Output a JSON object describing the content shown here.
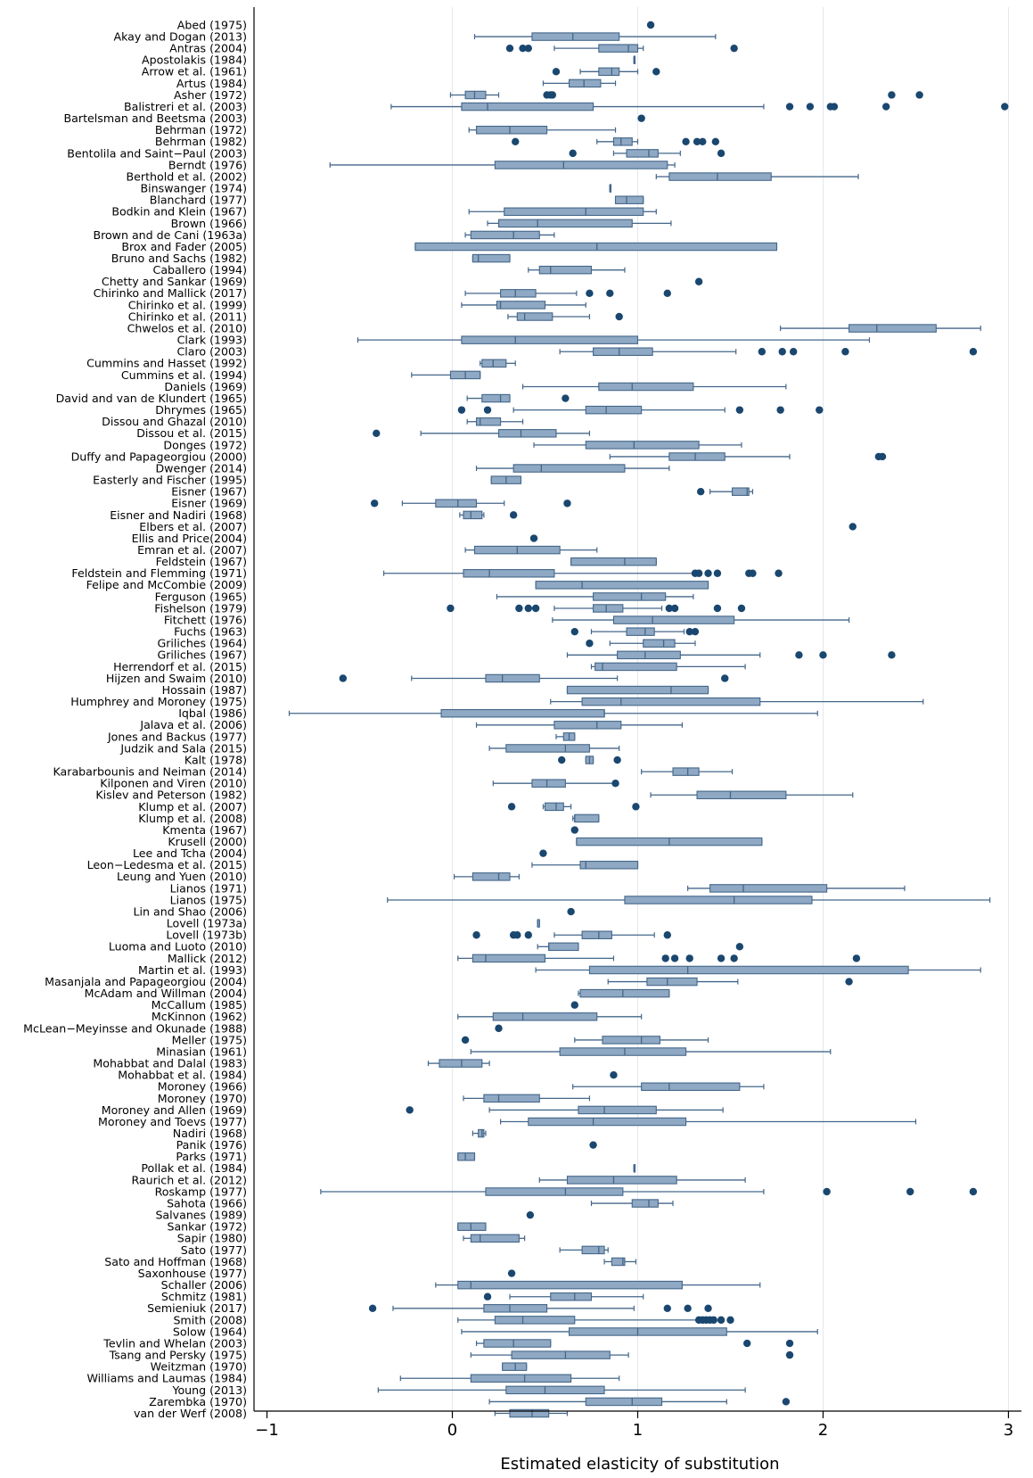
{
  "chart_data": {
    "type": "boxplot",
    "orientation": "horizontal",
    "title": "",
    "xlabel": "Estimated elasticity of substitution",
    "ylabel": "",
    "xlim": [
      -1.07,
      3.07
    ],
    "xticks": [
      -1,
      0,
      1,
      2,
      3
    ],
    "xtick_labels": [
      "−1",
      "0",
      "1",
      "2",
      "3"
    ],
    "vertical_grid": true,
    "legend": "none",
    "colors": {
      "box_fill": "#8fa8c3",
      "box_edge": "#44678a",
      "outlier": "#1a476f",
      "grid": "#e3e8ee",
      "axis": "#000000"
    },
    "categories": [
      "Abed (1975)",
      "Akay and Dogan (2013)",
      "Antras (2004)",
      "Apostolakis (1984)",
      "Arrow et al. (1961)",
      "Artus (1984)",
      "Asher (1972)",
      "Balistreri et al. (2003)",
      "Bartelsman and Beetsma (2003)",
      "Behrman (1972)",
      "Behrman (1982)",
      "Bentolila and Saint−Paul (2003)",
      "Berndt (1976)",
      "Berthold et al. (2002)",
      "Binswanger (1974)",
      "Blanchard (1977)",
      "Bodkin and Klein (1967)",
      "Brown (1966)",
      "Brown and de Cani (1963a)",
      "Brox and Fader (2005)",
      "Bruno and Sachs (1982)",
      "Caballero (1994)",
      "Chetty and Sankar (1969)",
      "Chirinko and Mallick (2017)",
      "Chirinko et al. (1999)",
      "Chirinko et al. (2011)",
      "Chwelos et al. (2010)",
      "Clark (1993)",
      "Claro (2003)",
      "Cummins and Hasset (1992)",
      "Cummins et al. (1994)",
      "Daniels (1969)",
      "David and van de Klundert (1965)",
      "Dhrymes (1965)",
      "Dissou and Ghazal (2010)",
      "Dissou et al. (2015)",
      "Donges (1972)",
      "Duffy and Papageorgiou (2000)",
      "Dwenger (2014)",
      "Easterly and Fischer (1995)",
      "Eisner (1967)",
      "Eisner (1969)",
      "Eisner and Nadiri (1968)",
      "Elbers et al. (2007)",
      "Ellis and Price(2004)",
      "Emran et al. (2007)",
      "Feldstein (1967)",
      "Feldstein and Flemming (1971)",
      "Felipe and McCombie (2009)",
      "Ferguson (1965)",
      "Fishelson (1979)",
      "Fitchett (1976)",
      "Fuchs (1963)",
      "Griliches (1964)",
      "Griliches (1967)",
      "Herrendorf et al. (2015)",
      "Hijzen and Swaim (2010)",
      "Hossain (1987)",
      "Humphrey and Moroney (1975)",
      "Iqbal (1986)",
      "Jalava et al. (2006)",
      "Jones and Backus (1977)",
      "Judzik and Sala (2015)",
      "Kalt (1978)",
      "Karabarbounis and Neiman (2014)",
      "Kilponen and Viren (2010)",
      "Kislev and Peterson (1982)",
      "Klump et al. (2007)",
      "Klump et al. (2008)",
      "Kmenta (1967)",
      "Krusell (2000)",
      "Lee and Tcha (2004)",
      "Leon−Ledesma et al. (2015)",
      "Leung and Yuen (2010)",
      "Lianos (1971)",
      "Lianos (1975)",
      "Lin and Shao (2006)",
      "Lovell (1973a)",
      "Lovell (1973b)",
      "Luoma and Luoto (2010)",
      "Mallick (2012)",
      "Martin et al. (1993)",
      "Masanjala and Papageorgiou (2004)",
      "McAdam and Willman (2004)",
      "McCallum (1985)",
      "McKinnon (1962)",
      "McLean−Meyinsse and Okunade (1988)",
      "Meller (1975)",
      "Minasian (1961)",
      "Mohabbat and Dalal (1983)",
      "Mohabbat et al. (1984)",
      "Moroney (1966)",
      "Moroney (1970)",
      "Moroney and Allen (1969)",
      "Moroney and Toevs (1977)",
      "Nadiri (1968)",
      "Panik (1976)",
      "Parks (1971)",
      "Pollak et al. (1984)",
      "Raurich et al. (2012)",
      "Roskamp (1977)",
      "Sahota (1966)",
      "Salvanes (1989)",
      "Sankar (1972)",
      "Sapir (1980)",
      "Sato (1977)",
      "Sato and Hoffman (1968)",
      "Saxonhouse (1977)",
      "Schaller (2006)",
      "Schmitz (1981)",
      "Semieniuk (2017)",
      "Smith (2008)",
      "Solow (1964)",
      "Tevlin and Whelan (2003)",
      "Tsang and Persky (1975)",
      "Weitzman (1970)",
      "Williams and Laumas (1984)",
      "Young (2013)",
      "Zarembka (1970)",
      "van der Werf (2008)"
    ],
    "boxes": [
      [
        null,
        null,
        null,
        null,
        null,
        [
          1.07
        ]
      ],
      [
        0.12,
        0.43,
        0.65,
        0.9,
        1.42,
        []
      ],
      [
        0.55,
        0.79,
        0.95,
        1.0,
        1.03,
        [
          0.31,
          0.38,
          0.41,
          1.52
        ]
      ],
      [
        0.98,
        0.98,
        0.98,
        0.98,
        0.98,
        []
      ],
      [
        0.69,
        0.79,
        0.86,
        0.9,
        1.0,
        [
          0.56,
          1.1
        ]
      ],
      [
        0.49,
        0.63,
        0.71,
        0.8,
        0.88,
        []
      ],
      [
        -0.01,
        0.07,
        0.12,
        0.18,
        0.25,
        [
          0.51,
          0.53,
          0.54,
          2.37,
          2.52
        ]
      ],
      [
        -0.33,
        0.05,
        0.19,
        0.76,
        1.68,
        [
          1.82,
          1.93,
          2.04,
          2.06,
          2.34,
          2.98
        ]
      ],
      [
        null,
        null,
        null,
        null,
        null,
        [
          1.02
        ]
      ],
      [
        0.09,
        0.13,
        0.31,
        0.51,
        0.88,
        []
      ],
      [
        0.78,
        0.87,
        0.91,
        0.97,
        1.0,
        [
          0.34,
          1.26,
          1.32,
          1.35,
          1.42
        ]
      ],
      [
        0.87,
        0.94,
        1.06,
        1.11,
        1.23,
        [
          0.65,
          1.45
        ]
      ],
      [
        -0.66,
        0.23,
        0.6,
        1.16,
        1.2,
        []
      ],
      [
        1.1,
        1.17,
        1.43,
        1.72,
        2.19,
        []
      ],
      [
        0.85,
        0.85,
        0.85,
        0.85,
        0.85,
        []
      ],
      [
        0.88,
        0.88,
        0.94,
        1.03,
        1.03,
        []
      ],
      [
        0.09,
        0.28,
        0.72,
        1.03,
        1.1,
        []
      ],
      [
        0.19,
        0.25,
        0.46,
        0.97,
        1.18,
        []
      ],
      [
        0.07,
        0.1,
        0.33,
        0.47,
        0.55,
        []
      ],
      [
        -0.2,
        -0.2,
        0.78,
        1.75,
        1.75,
        []
      ],
      [
        0.11,
        0.11,
        0.14,
        0.31,
        0.31,
        []
      ],
      [
        0.41,
        0.47,
        0.53,
        0.75,
        0.93,
        []
      ],
      [
        null,
        null,
        null,
        null,
        null,
        [
          1.33
        ]
      ],
      [
        0.07,
        0.26,
        0.34,
        0.45,
        0.67,
        [
          0.74,
          0.85,
          1.16
        ]
      ],
      [
        0.05,
        0.24,
        0.26,
        0.5,
        0.72,
        []
      ],
      [
        0.3,
        0.35,
        0.39,
        0.54,
        0.74,
        [
          0.9
        ]
      ],
      [
        1.77,
        2.14,
        2.29,
        2.61,
        2.85,
        []
      ],
      [
        -0.51,
        0.05,
        0.34,
        1.0,
        2.25,
        []
      ],
      [
        0.58,
        0.76,
        0.9,
        1.08,
        1.53,
        [
          1.67,
          1.78,
          1.84,
          2.12,
          2.81
        ]
      ],
      [
        0.15,
        0.16,
        0.22,
        0.29,
        0.34,
        []
      ],
      [
        -0.22,
        -0.01,
        0.07,
        0.15,
        0.15,
        []
      ],
      [
        0.38,
        0.79,
        0.97,
        1.3,
        1.8,
        []
      ],
      [
        0.08,
        0.16,
        0.26,
        0.31,
        0.31,
        [
          0.61
        ]
      ],
      [
        0.33,
        0.72,
        0.83,
        1.02,
        1.47,
        [
          0.05,
          0.19,
          1.55,
          1.77,
          1.98
        ]
      ],
      [
        0.08,
        0.13,
        0.15,
        0.26,
        0.38,
        []
      ],
      [
        -0.17,
        0.25,
        0.37,
        0.56,
        0.74,
        [
          -0.41
        ]
      ],
      [
        0.44,
        0.72,
        0.98,
        1.33,
        1.56,
        []
      ],
      [
        0.85,
        1.17,
        1.31,
        1.47,
        1.82,
        [
          2.3,
          2.32
        ]
      ],
      [
        0.13,
        0.33,
        0.48,
        0.93,
        1.17,
        []
      ],
      [
        0.21,
        0.21,
        0.29,
        0.37,
        0.37,
        []
      ],
      [
        1.39,
        1.51,
        1.59,
        1.6,
        1.62,
        [
          1.34
        ]
      ],
      [
        -0.27,
        -0.09,
        0.03,
        0.13,
        0.28,
        [
          -0.42,
          0.62
        ]
      ],
      [
        0.04,
        0.06,
        0.1,
        0.16,
        0.17,
        [
          0.33
        ]
      ],
      [
        null,
        null,
        null,
        null,
        null,
        [
          2.16
        ]
      ],
      [
        null,
        null,
        null,
        null,
        null,
        [
          0.44
        ]
      ],
      [
        0.07,
        0.12,
        0.35,
        0.58,
        0.78,
        []
      ],
      [
        0.64,
        0.64,
        0.93,
        1.1,
        1.1,
        []
      ],
      [
        -0.37,
        0.06,
        0.2,
        0.55,
        1.3,
        [
          1.31,
          1.33,
          1.38,
          1.43,
          1.6,
          1.62,
          1.76
        ]
      ],
      [
        0.45,
        0.45,
        0.7,
        1.38,
        1.38,
        []
      ],
      [
        0.24,
        0.76,
        1.02,
        1.15,
        1.3,
        []
      ],
      [
        0.55,
        0.76,
        0.83,
        0.92,
        1.13,
        [
          -0.01,
          0.36,
          0.41,
          0.45,
          1.17,
          1.2,
          1.43,
          1.56
        ]
      ],
      [
        0.54,
        0.87,
        1.08,
        1.52,
        2.14,
        []
      ],
      [
        0.75,
        0.94,
        1.04,
        1.09,
        1.25,
        [
          0.66,
          1.28,
          1.31
        ]
      ],
      [
        0.85,
        1.03,
        1.14,
        1.2,
        1.31,
        [
          0.74
        ]
      ],
      [
        0.62,
        0.89,
        1.04,
        1.23,
        1.66,
        [
          1.87,
          2.0,
          2.37
        ]
      ],
      [
        0.75,
        0.77,
        0.81,
        1.21,
        1.58,
        []
      ],
      [
        -0.22,
        0.18,
        0.27,
        0.47,
        0.89,
        [
          -0.59,
          1.47
        ]
      ],
      [
        0.62,
        0.62,
        1.18,
        1.38,
        1.38,
        []
      ],
      [
        0.53,
        0.7,
        0.91,
        1.66,
        2.54,
        []
      ],
      [
        -0.88,
        -0.06,
        0.82,
        0.82,
        1.97,
        []
      ],
      [
        0.13,
        0.55,
        0.78,
        0.91,
        1.24,
        []
      ],
      [
        0.56,
        0.6,
        0.63,
        0.66,
        0.66,
        []
      ],
      [
        0.2,
        0.29,
        0.61,
        0.74,
        0.9,
        []
      ],
      [
        0.72,
        0.72,
        0.74,
        0.76,
        0.76,
        [
          0.59,
          0.89
        ]
      ],
      [
        1.02,
        1.19,
        1.27,
        1.33,
        1.51,
        []
      ],
      [
        0.22,
        0.43,
        0.51,
        0.61,
        0.88,
        [
          0.88
        ]
      ],
      [
        1.07,
        1.32,
        1.5,
        1.8,
        2.16,
        []
      ],
      [
        0.49,
        0.5,
        0.56,
        0.6,
        0.64,
        [
          0.32,
          0.99
        ]
      ],
      [
        0.65,
        0.66,
        0.66,
        0.79,
        0.79,
        []
      ],
      [
        null,
        null,
        null,
        null,
        null,
        [
          0.66
        ]
      ],
      [
        0.67,
        0.67,
        1.17,
        1.67,
        1.67,
        []
      ],
      [
        null,
        null,
        null,
        null,
        null,
        [
          0.49
        ]
      ],
      [
        0.43,
        0.69,
        0.72,
        1.0,
        1.0,
        []
      ],
      [
        0.01,
        0.11,
        0.25,
        0.31,
        0.36,
        []
      ],
      [
        1.27,
        1.39,
        1.57,
        2.02,
        2.44,
        []
      ],
      [
        -0.35,
        0.93,
        1.52,
        1.94,
        2.9,
        []
      ],
      [
        null,
        null,
        null,
        null,
        null,
        [
          0.64
        ]
      ],
      [
        0.46,
        0.46,
        0.46,
        0.47,
        0.47,
        []
      ],
      [
        0.55,
        0.7,
        0.79,
        0.86,
        1.09,
        [
          0.13,
          0.33,
          0.35,
          0.41,
          1.16
        ]
      ],
      [
        0.46,
        0.52,
        0.52,
        0.68,
        0.68,
        [
          1.55
        ]
      ],
      [
        0.03,
        0.11,
        0.18,
        0.5,
        0.87,
        [
          1.15,
          1.2,
          1.28,
          1.45,
          1.52,
          2.18
        ]
      ],
      [
        0.45,
        0.74,
        1.27,
        2.46,
        2.85,
        []
      ],
      [
        0.84,
        1.05,
        1.16,
        1.32,
        1.54,
        [
          2.14
        ]
      ],
      [
        0.68,
        0.69,
        0.92,
        1.17,
        1.17,
        []
      ],
      [
        null,
        null,
        null,
        null,
        null,
        [
          0.66
        ]
      ],
      [
        0.03,
        0.22,
        0.38,
        0.78,
        1.02,
        []
      ],
      [
        null,
        null,
        null,
        null,
        null,
        [
          0.25
        ]
      ],
      [
        0.66,
        0.81,
        1.02,
        1.12,
        1.38,
        [
          0.07
        ]
      ],
      [
        0.1,
        0.58,
        0.93,
        1.26,
        2.04,
        []
      ],
      [
        -0.13,
        -0.07,
        0.05,
        0.16,
        0.2,
        []
      ],
      [
        null,
        null,
        null,
        null,
        null,
        [
          0.87
        ]
      ],
      [
        0.65,
        1.02,
        1.17,
        1.55,
        1.68,
        []
      ],
      [
        0.06,
        0.17,
        0.25,
        0.47,
        0.74,
        []
      ],
      [
        0.2,
        0.68,
        0.82,
        1.1,
        1.46,
        [
          -0.23
        ]
      ],
      [
        0.26,
        0.41,
        0.76,
        1.26,
        2.5,
        []
      ],
      [
        0.11,
        0.14,
        0.16,
        0.17,
        0.18,
        []
      ],
      [
        null,
        null,
        null,
        null,
        null,
        [
          0.76
        ]
      ],
      [
        0.03,
        0.03,
        0.07,
        0.12,
        0.12,
        []
      ],
      [
        0.98,
        0.98,
        0.98,
        0.98,
        0.98,
        []
      ],
      [
        0.47,
        0.62,
        0.87,
        1.21,
        1.58,
        []
      ],
      [
        -0.71,
        0.18,
        0.61,
        0.92,
        1.68,
        [
          2.02,
          2.47,
          2.81
        ]
      ],
      [
        0.75,
        0.97,
        1.06,
        1.11,
        1.19,
        []
      ],
      [
        null,
        null,
        null,
        null,
        null,
        [
          0.42
        ]
      ],
      [
        0.03,
        0.03,
        0.1,
        0.18,
        0.18,
        []
      ],
      [
        0.06,
        0.1,
        0.15,
        0.36,
        0.39,
        []
      ],
      [
        0.58,
        0.7,
        0.79,
        0.82,
        0.84,
        []
      ],
      [
        0.82,
        0.86,
        0.92,
        0.93,
        0.99,
        []
      ],
      [
        null,
        null,
        null,
        null,
        null,
        [
          0.32
        ]
      ],
      [
        -0.09,
        0.03,
        0.1,
        1.24,
        1.66,
        []
      ],
      [
        0.31,
        0.53,
        0.66,
        0.75,
        1.03,
        [
          0.19
        ]
      ],
      [
        -0.32,
        0.17,
        0.31,
        0.51,
        0.98,
        [
          -0.43,
          1.16,
          1.27,
          1.38
        ]
      ],
      [
        0.03,
        0.23,
        0.38,
        0.66,
        1.33,
        [
          1.33,
          1.35,
          1.37,
          1.39,
          1.41,
          1.45,
          1.5
        ]
      ],
      [
        0.05,
        0.63,
        1.0,
        1.48,
        1.97,
        []
      ],
      [
        0.13,
        0.17,
        0.33,
        0.53,
        0.53,
        [
          1.59,
          1.82
        ]
      ],
      [
        0.1,
        0.32,
        0.61,
        0.85,
        0.95,
        [
          1.82
        ]
      ],
      [
        0.27,
        0.27,
        0.34,
        0.4,
        0.4,
        []
      ],
      [
        -0.28,
        0.1,
        0.39,
        0.64,
        0.9,
        []
      ],
      [
        -0.4,
        0.29,
        0.5,
        0.82,
        1.58,
        []
      ],
      [
        0.2,
        0.72,
        0.97,
        1.13,
        1.48,
        [
          1.8
        ]
      ],
      [
        0.23,
        0.31,
        0.43,
        0.52,
        0.62,
        []
      ]
    ]
  }
}
